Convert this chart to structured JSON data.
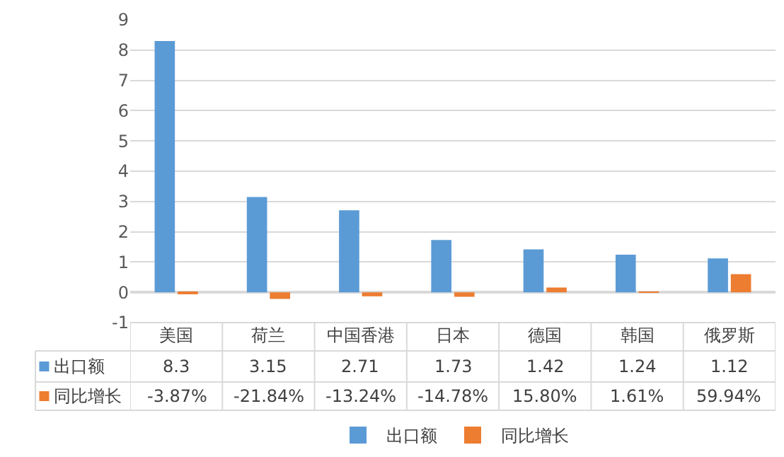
{
  "chart_data": {
    "type": "bar",
    "categories": [
      "美国",
      "荷兰",
      "中国香港",
      "日本",
      "德国",
      "韩国",
      "俄罗斯"
    ],
    "series": [
      {
        "name": "出口额",
        "color": "#5b9bd5",
        "values": [
          8.3,
          3.15,
          2.71,
          1.73,
          1.42,
          1.24,
          1.12
        ],
        "value_labels": [
          "8.3",
          "3.15",
          "2.71",
          "1.73",
          "1.42",
          "1.24",
          "1.12"
        ]
      },
      {
        "name": "同比增长",
        "color": "#ed7d31",
        "values": [
          -0.0387,
          -0.2184,
          -0.1324,
          -0.1478,
          0.158,
          0.0161,
          0.5994
        ],
        "value_labels": [
          "-3.87%",
          "-21.84%",
          "-13.24%",
          "-14.78%",
          "15.80%",
          "1.61%",
          "59.94%"
        ]
      }
    ],
    "ylim": [
      -1,
      9
    ],
    "yticks": [
      -1,
      0,
      1,
      2,
      3,
      4,
      5,
      6,
      7,
      8,
      9
    ],
    "grid": "y",
    "legend": "bottom"
  }
}
